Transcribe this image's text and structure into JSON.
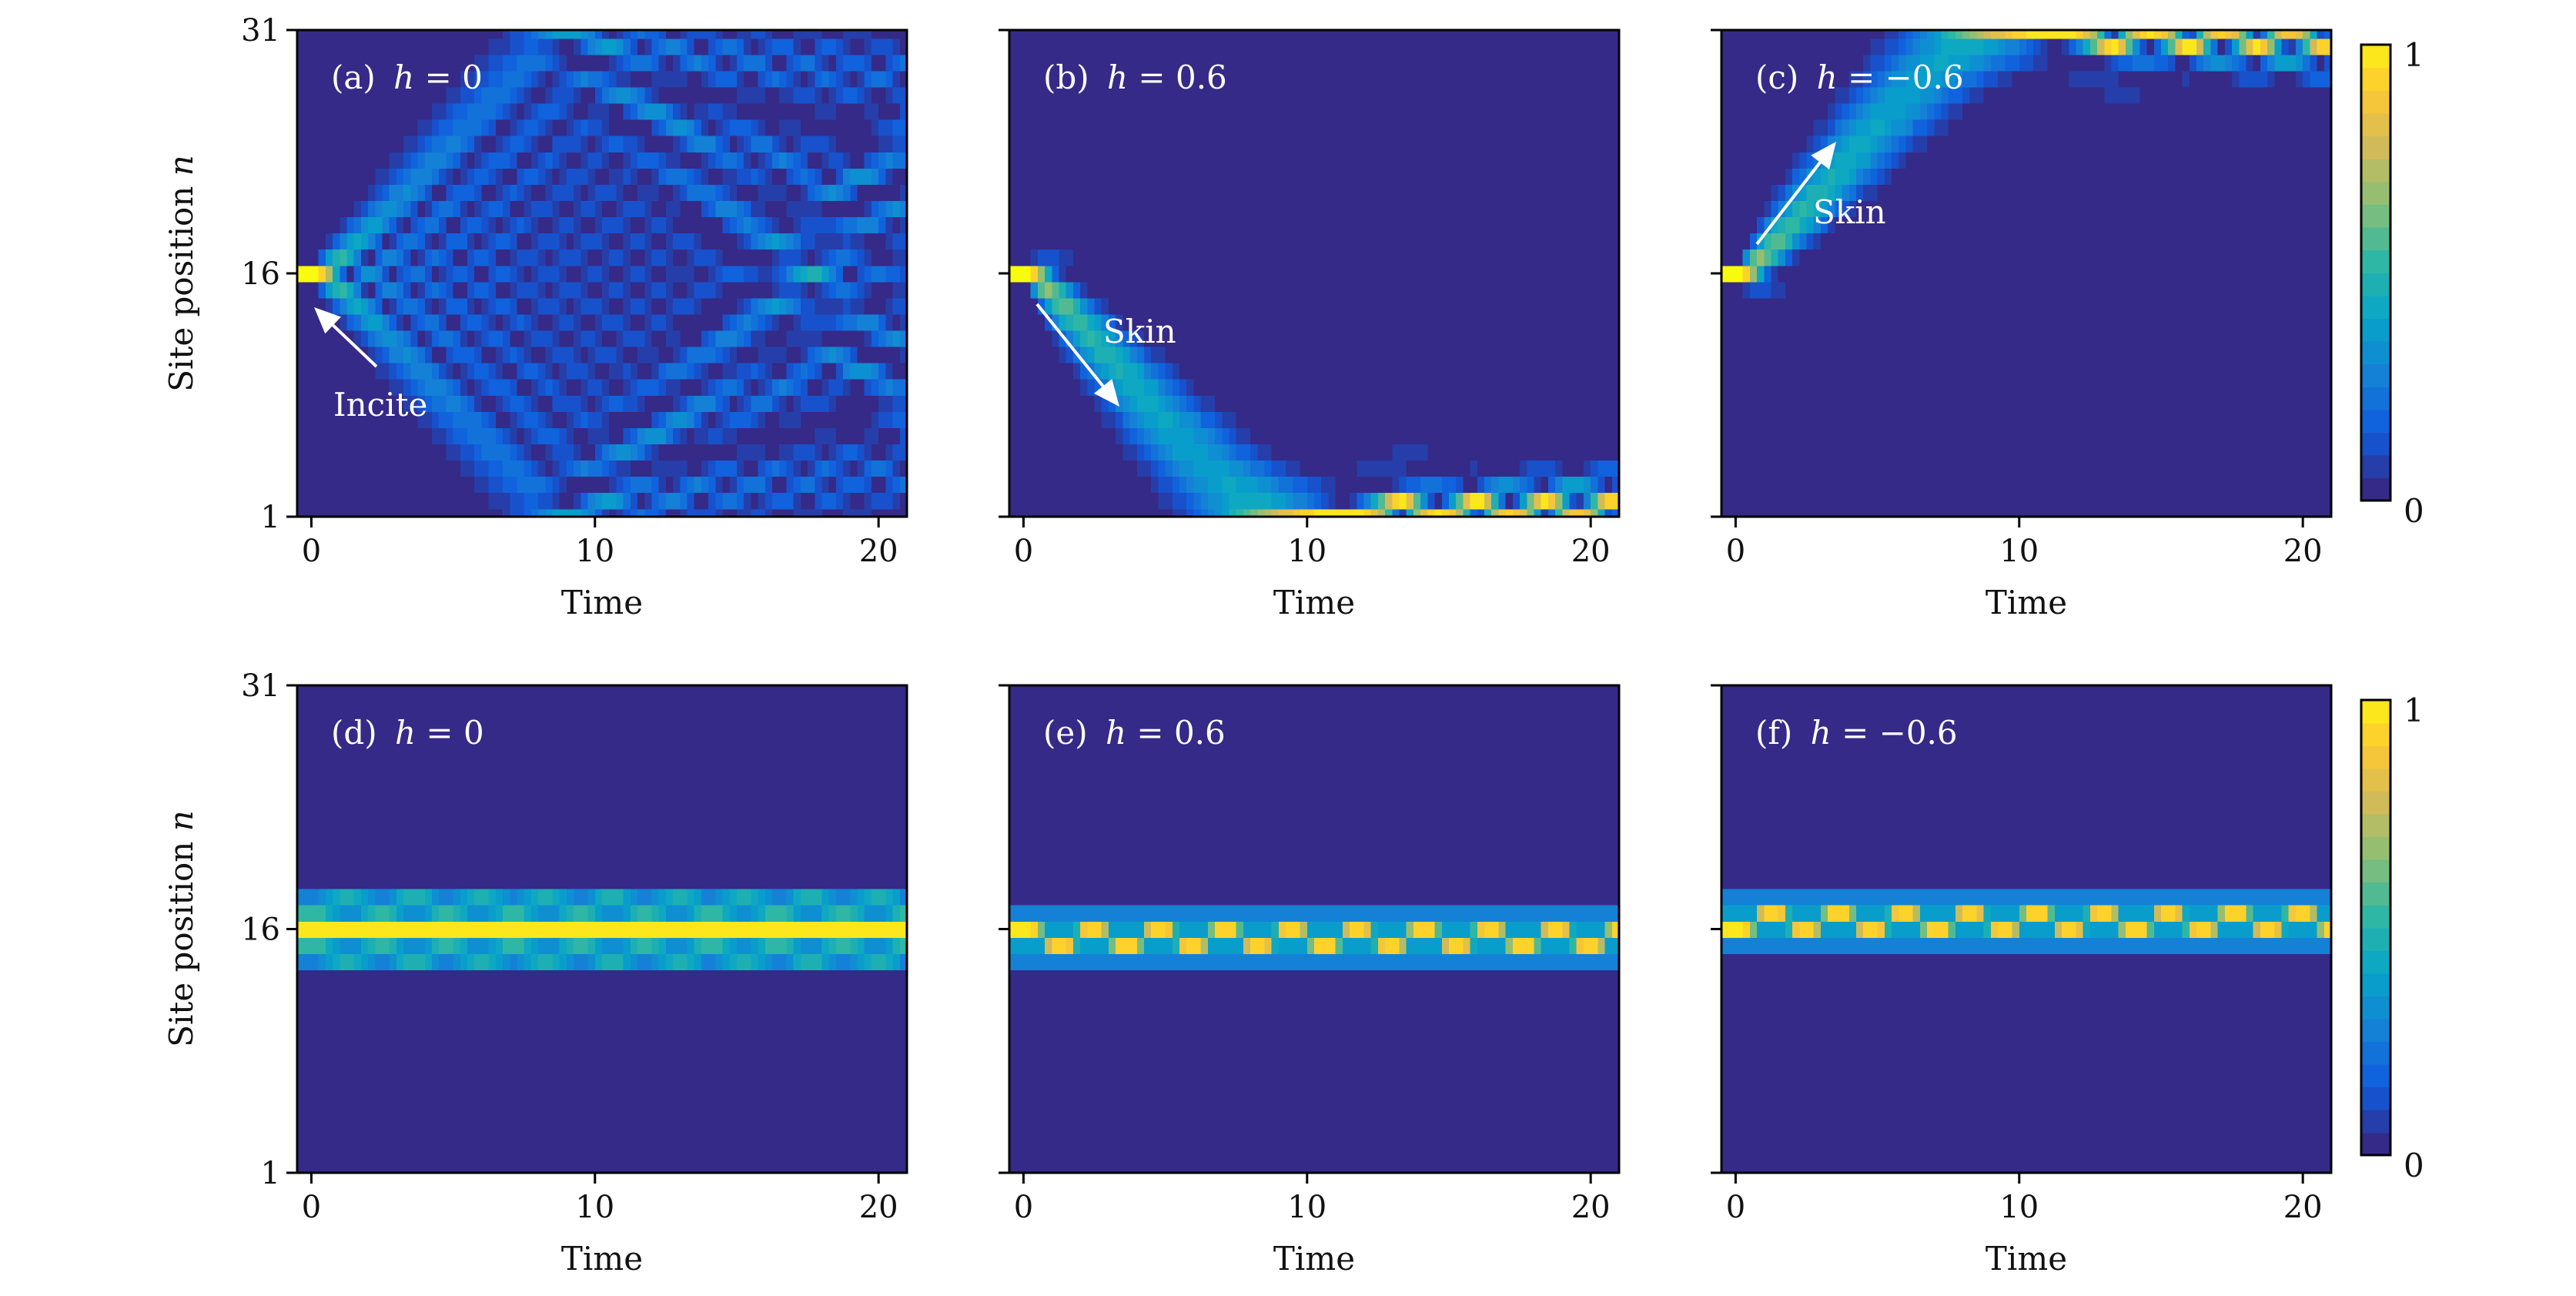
{
  "figure": {
    "ylabel_text": "Site position ",
    "ylabel_var": "n",
    "xlabel": "Time"
  },
  "colorbar": {
    "min": 0,
    "max": 1,
    "tick_min": "0",
    "tick_max": "1",
    "colormap": [
      "#352a87",
      "#0f5cdd",
      "#1481d6",
      "#06a4ca",
      "#2eb7a4",
      "#87bf77",
      "#d1bb59",
      "#fec832",
      "#f9fb0e"
    ]
  },
  "chart_data": [
    {
      "id": "a",
      "type": "heatmap",
      "label": "(a)",
      "var": "h",
      "value_text": " = 0",
      "h": 0,
      "row": 1,
      "xlabel": "Time",
      "ylabel": "Site position n",
      "xlim": [
        -0.5,
        21
      ],
      "ylim": [
        1,
        31
      ],
      "xticks": [
        "0",
        "10",
        "20"
      ],
      "yticks": [
        "1",
        "16",
        "31"
      ],
      "annotation": "Incite",
      "initial_site": 16
    },
    {
      "id": "b",
      "type": "heatmap",
      "label": "(b)",
      "var": "h",
      "value_text": " = 0.6",
      "h": 0.6,
      "row": 1,
      "xlabel": "Time",
      "xlim": [
        -0.5,
        21
      ],
      "ylim": [
        1,
        31
      ],
      "xticks": [
        "0",
        "10",
        "20"
      ],
      "annotation": "Skin",
      "initial_site": 16
    },
    {
      "id": "c",
      "type": "heatmap",
      "label": "(c)",
      "var": "h",
      "value_text": " = −0.6",
      "h": -0.6,
      "row": 1,
      "xlabel": "Time",
      "xlim": [
        -0.5,
        21
      ],
      "ylim": [
        1,
        31
      ],
      "xticks": [
        "0",
        "10",
        "20"
      ],
      "annotation": "Skin",
      "initial_site": 16
    },
    {
      "id": "d",
      "type": "heatmap",
      "label": "(d)",
      "var": "h",
      "value_text": " = 0",
      "h": 0,
      "row": 2,
      "xlabel": "Time",
      "ylabel": "Site position n",
      "xlim": [
        -0.5,
        21
      ],
      "ylim": [
        1,
        31
      ],
      "xticks": [
        "0",
        "10",
        "20"
      ],
      "yticks": [
        "1",
        "16",
        "31"
      ],
      "initial_site": 16
    },
    {
      "id": "e",
      "type": "heatmap",
      "label": "(e)",
      "var": "h",
      "value_text": " = 0.6",
      "h": 0.6,
      "row": 2,
      "xlabel": "Time",
      "xlim": [
        -0.5,
        21
      ],
      "ylim": [
        1,
        31
      ],
      "xticks": [
        "0",
        "10",
        "20"
      ],
      "initial_site": 16
    },
    {
      "id": "f",
      "type": "heatmap",
      "label": "(f)",
      "var": "h",
      "value_text": " = −0.6",
      "h": -0.6,
      "row": 2,
      "xlabel": "Time",
      "xlim": [
        -0.5,
        21
      ],
      "ylim": [
        1,
        31
      ],
      "xticks": [
        "0",
        "10",
        "20"
      ],
      "initial_site": 16
    }
  ]
}
